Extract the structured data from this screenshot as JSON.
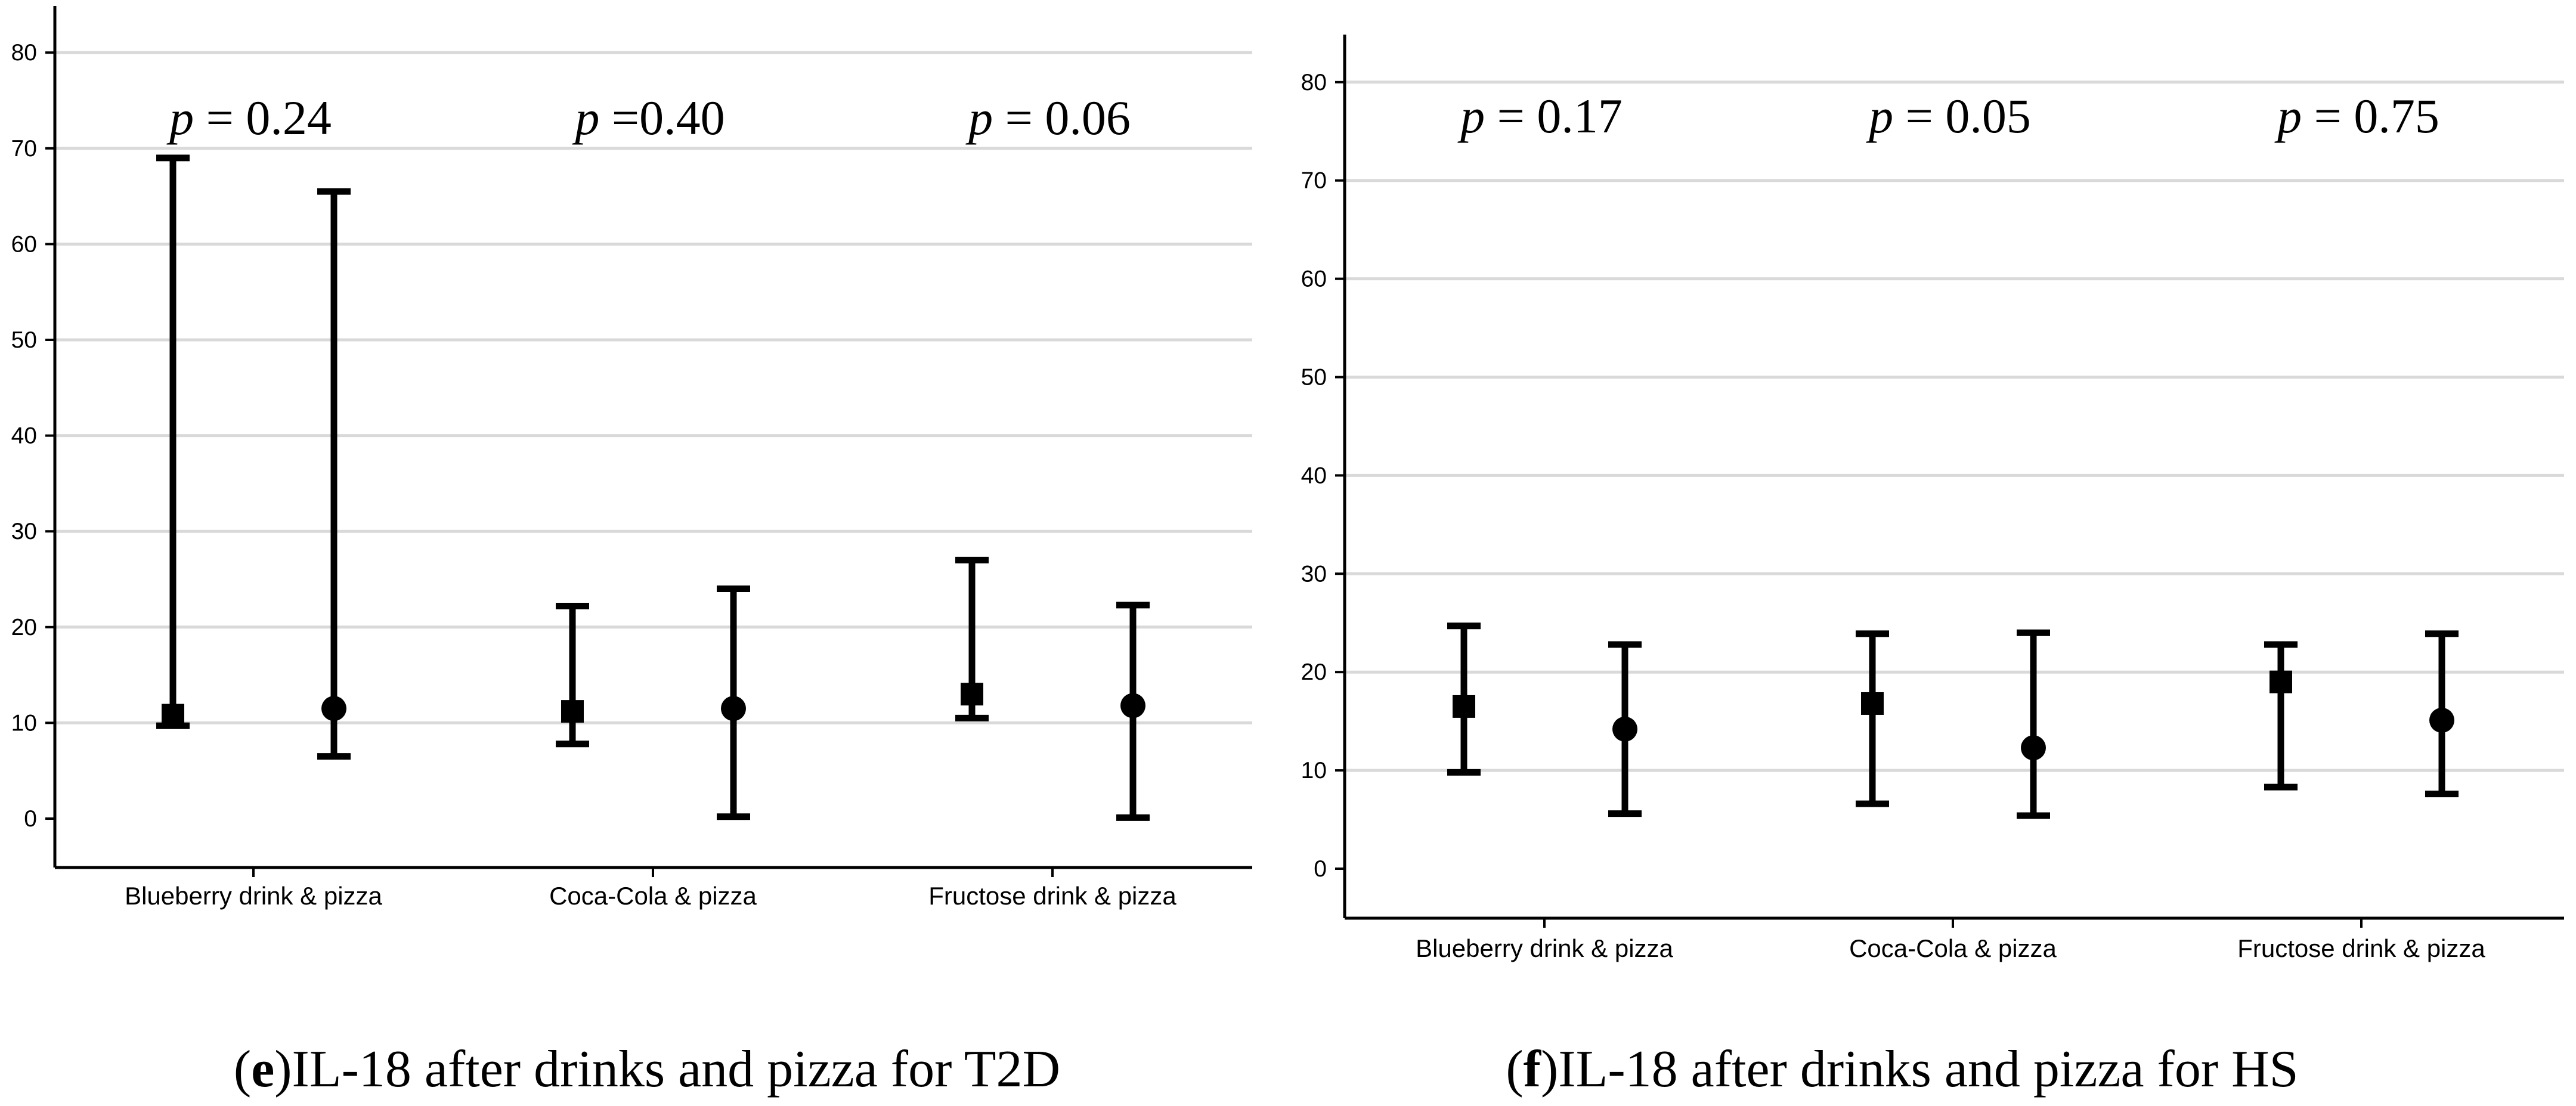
{
  "chart_data": [
    {
      "type": "errorbar",
      "panel": "e",
      "caption": "IL-18 after drinks and pizza for T2D",
      "categories": [
        "Blueberry  drink & pizza",
        "Coca-Cola & pizza",
        "Fructose drink & pizza"
      ],
      "p_values": [
        "= 0.24",
        "=0.40",
        "= 0.06"
      ],
      "yticks": [
        0,
        10,
        20,
        30,
        40,
        50,
        60,
        70,
        80
      ],
      "ylim": [
        -5,
        85
      ],
      "grid": true,
      "series": [
        {
          "name": "square",
          "marker": "square",
          "median": [
            10.8,
            11.2,
            13.0
          ],
          "low": [
            9.7,
            7.8,
            10.5
          ],
          "high": [
            69.0,
            22.2,
            27.0
          ]
        },
        {
          "name": "circle",
          "marker": "circle",
          "median": [
            11.5,
            11.5,
            11.8
          ],
          "low": [
            6.5,
            0.2,
            0.1
          ],
          "high": [
            65.5,
            24.0,
            22.3
          ]
        }
      ]
    },
    {
      "type": "errorbar",
      "panel": "f",
      "caption": "IL-18 after drinks and pizza for HS",
      "categories": [
        "Blueberry  drink & pizza",
        "Coca-Cola & pizza",
        "Fructose drink & pizza"
      ],
      "p_values": [
        "= 0.17",
        "= 0.05",
        "= 0.75"
      ],
      "yticks": [
        0,
        10,
        20,
        30,
        40,
        50,
        60,
        70,
        80
      ],
      "ylim": [
        -5,
        85
      ],
      "grid": true,
      "series": [
        {
          "name": "square",
          "marker": "square",
          "median": [
            16.5,
            16.8,
            19.0
          ],
          "low": [
            9.8,
            6.6,
            8.3
          ],
          "high": [
            24.7,
            23.9,
            22.8
          ]
        },
        {
          "name": "circle",
          "marker": "circle",
          "median": [
            14.2,
            12.3,
            15.1
          ],
          "low": [
            5.6,
            5.4,
            7.6
          ],
          "high": [
            22.8,
            24.0,
            23.9
          ]
        }
      ]
    }
  ]
}
